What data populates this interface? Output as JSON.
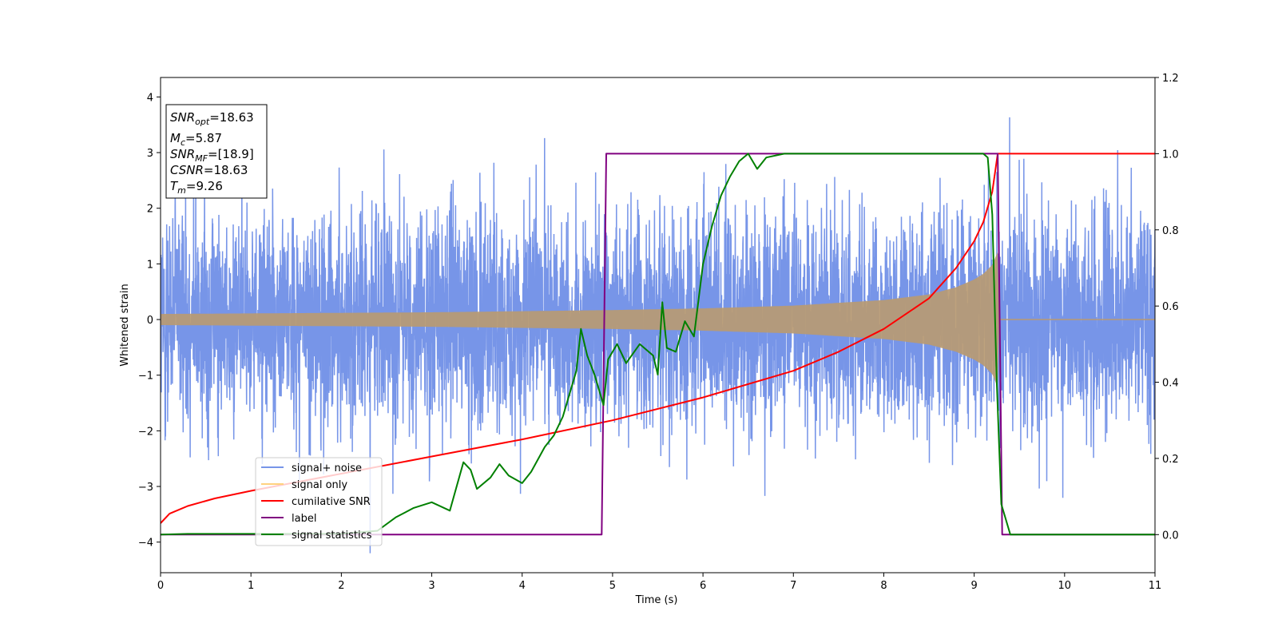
{
  "chart_data": {
    "type": "line",
    "title": "",
    "xlabel": "Time (s)",
    "ylabel": "Whitened strain",
    "xlim": [
      0,
      11
    ],
    "ylim_left": [
      -4.55,
      4.35
    ],
    "ylim_right": [
      -0.1,
      1.2
    ],
    "x_ticks": [
      "0",
      "1",
      "2",
      "3",
      "4",
      "5",
      "6",
      "7",
      "8",
      "9",
      "10",
      "11"
    ],
    "y_left_ticks": [
      "4",
      "3",
      "2",
      "1",
      "0",
      "−1",
      "−2",
      "−3",
      "−4"
    ],
    "y_right_ticks": [
      "1.2",
      "1.0",
      "0.8",
      "0.6",
      "0.4",
      "0.2",
      "0.0"
    ],
    "grid": false,
    "legend_placement": "lower-left",
    "annotation": {
      "lines": [
        {
          "base": "SNR",
          "sub": "opt",
          "rest": "=18.63"
        },
        {
          "base": "M",
          "sub": "c",
          "rest": "=5.87"
        },
        {
          "base": "SNR",
          "sub": "MF",
          "rest": "=[18.9]"
        },
        {
          "base": "CSNR",
          "sub": "",
          "rest": "=18.63"
        },
        {
          "base": "T",
          "sub": "m",
          "rest": "=9.26"
        }
      ]
    },
    "series": [
      {
        "name": "signal+ noise",
        "axis": "left",
        "color": "#7795e8",
        "description": "dense noise trace (approx. band -2.3..2.3, spikes to about ±4) from 0 to 11 s",
        "noise_envelope": 2.3
      },
      {
        "name": "signal only",
        "axis": "left",
        "color": "#b99a72",
        "description": "chirp amplitude envelope, 0 after merger",
        "x": [
          0,
          1,
          2,
          3,
          4,
          5,
          6,
          7,
          8,
          8.5,
          8.8,
          9.0,
          9.1,
          9.2,
          9.26,
          9.27,
          11
        ],
        "amplitude": [
          0.1,
          0.11,
          0.12,
          0.13,
          0.15,
          0.17,
          0.2,
          0.25,
          0.35,
          0.45,
          0.58,
          0.72,
          0.82,
          0.98,
          1.22,
          0,
          0
        ]
      },
      {
        "name": "cumilative SNR",
        "axis": "right",
        "color": "#ff0000",
        "x": [
          0,
          0.1,
          0.3,
          0.6,
          1,
          2,
          3,
          4,
          5,
          6,
          7,
          7.5,
          8,
          8.5,
          8.8,
          9.0,
          9.1,
          9.2,
          9.26,
          11
        ],
        "y": [
          0.03,
          0.055,
          0.075,
          0.095,
          0.115,
          0.16,
          0.205,
          0.25,
          0.3,
          0.36,
          0.43,
          0.48,
          0.54,
          0.62,
          0.7,
          0.77,
          0.82,
          0.9,
          1.0,
          1.0
        ]
      },
      {
        "name": "label",
        "axis": "right",
        "color": "#800080",
        "x": [
          0,
          4.88,
          4.93,
          9.26,
          9.31,
          11
        ],
        "y": [
          0,
          0,
          1,
          1,
          0,
          0
        ]
      },
      {
        "name": "signal statistics",
        "axis": "right",
        "color": "#008000",
        "x": [
          0,
          0.3,
          1,
          2,
          2.4,
          2.6,
          2.8,
          3.0,
          3.2,
          3.35,
          3.43,
          3.5,
          3.65,
          3.75,
          3.85,
          4.0,
          4.1,
          4.25,
          4.35,
          4.45,
          4.5,
          4.6,
          4.65,
          4.72,
          4.8,
          4.9,
          4.95,
          5.05,
          5.15,
          5.3,
          5.45,
          5.5,
          5.55,
          5.6,
          5.7,
          5.8,
          5.9,
          6.0,
          6.1,
          6.2,
          6.3,
          6.4,
          6.5,
          6.6,
          6.7,
          6.9,
          7.2,
          7.5,
          7.8,
          8.0,
          8.5,
          8.9,
          9.0,
          9.1,
          9.15,
          9.2,
          9.25,
          9.3,
          9.4,
          11
        ],
        "y": [
          0.0,
          0.002,
          0.002,
          0.002,
          0.01,
          0.045,
          0.07,
          0.085,
          0.063,
          0.19,
          0.17,
          0.12,
          0.15,
          0.185,
          0.155,
          0.135,
          0.165,
          0.23,
          0.26,
          0.31,
          0.35,
          0.43,
          0.54,
          0.47,
          0.42,
          0.34,
          0.46,
          0.5,
          0.45,
          0.5,
          0.47,
          0.42,
          0.61,
          0.49,
          0.48,
          0.56,
          0.52,
          0.71,
          0.81,
          0.89,
          0.94,
          0.98,
          1.0,
          0.96,
          0.99,
          1.0,
          1.0,
          1.0,
          1.0,
          1.0,
          1.0,
          1.0,
          1.0,
          1.0,
          0.99,
          0.84,
          0.4,
          0.08,
          0.0,
          0.0
        ]
      }
    ]
  }
}
